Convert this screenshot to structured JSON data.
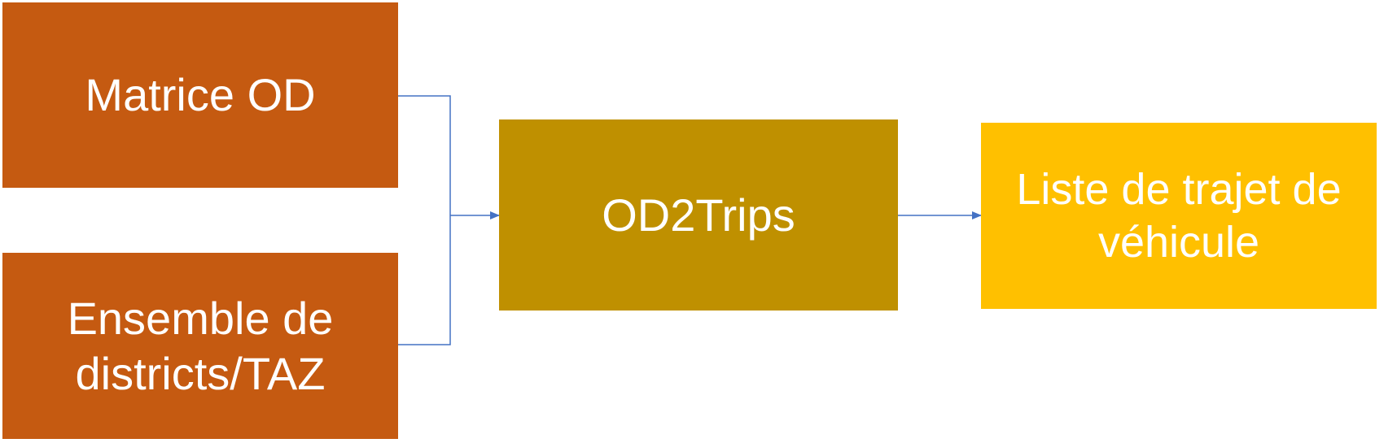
{
  "colors": {
    "input_box": "#c55a11",
    "process_box": "#bf9000",
    "output_box": "#ffc000",
    "connector": "#4472c4",
    "text": "#ffffff"
  },
  "nodes": {
    "matrice_od": {
      "lines": [
        "Matrice OD"
      ]
    },
    "ensemble_districts": {
      "lines": [
        "Ensemble de",
        "districts/TAZ"
      ]
    },
    "od2trips": {
      "lines": [
        "OD2Trips"
      ]
    },
    "liste_trajet": {
      "lines": [
        "Liste de trajet de",
        "véhicule"
      ]
    }
  },
  "edges": [
    {
      "from": "matrice_od",
      "to": "od2trips"
    },
    {
      "from": "ensemble_districts",
      "to": "od2trips"
    },
    {
      "from": "od2trips",
      "to": "liste_trajet"
    }
  ]
}
